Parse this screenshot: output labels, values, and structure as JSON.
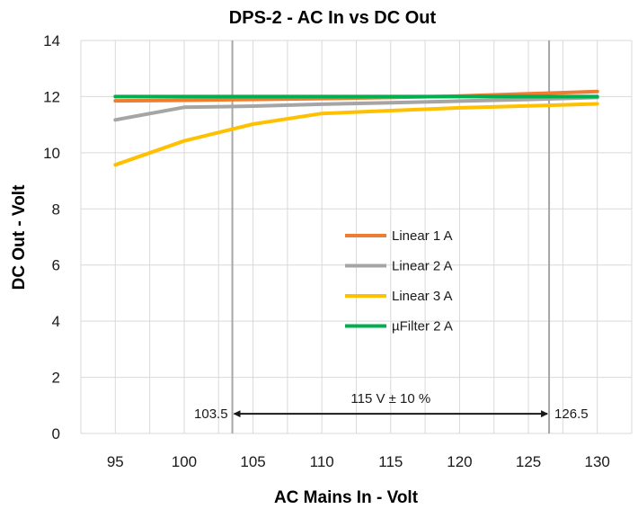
{
  "chart_data": {
    "type": "line",
    "title": "DPS-2 - AC In vs DC Out",
    "xlabel": "AC Mains In - Volt",
    "ylabel": "DC Out - Volt",
    "x": [
      95,
      100,
      105,
      110,
      115,
      120,
      125,
      130
    ],
    "xlim": [
      92.5,
      132.5
    ],
    "ylim": [
      0,
      14
    ],
    "x_ticks": [
      "95",
      "100",
      "105",
      "110",
      "115",
      "120",
      "125",
      "130"
    ],
    "y_ticks": [
      "0",
      "2",
      "4",
      "6",
      "8",
      "10",
      "12",
      "14"
    ],
    "grid": true,
    "legend_position": "center-right",
    "series": [
      {
        "name": "Linear 1 A",
        "color": "#ED7D31",
        "values": [
          11.85,
          11.87,
          11.9,
          11.93,
          11.97,
          12.02,
          12.1,
          12.18
        ]
      },
      {
        "name": "Linear 2 A",
        "color": "#A5A5A5",
        "values": [
          11.17,
          11.62,
          11.66,
          11.73,
          11.78,
          11.84,
          11.9,
          11.97
        ]
      },
      {
        "name": "Linear 3 A",
        "color": "#FFC000",
        "values": [
          9.57,
          10.42,
          11.02,
          11.4,
          11.5,
          11.6,
          11.67,
          11.74
        ]
      },
      {
        "name": "µFilter 2 A",
        "color": "#00B050",
        "values": [
          12.0,
          12.0,
          12.0,
          12.0,
          12.0,
          12.0,
          12.0,
          12.0
        ]
      }
    ],
    "markers": {
      "lower": {
        "x": 103.5,
        "label": "103.5"
      },
      "upper": {
        "x": 126.5,
        "label": "126.5"
      },
      "range_label": "115 V ± 10 %",
      "y": 0.7
    }
  }
}
